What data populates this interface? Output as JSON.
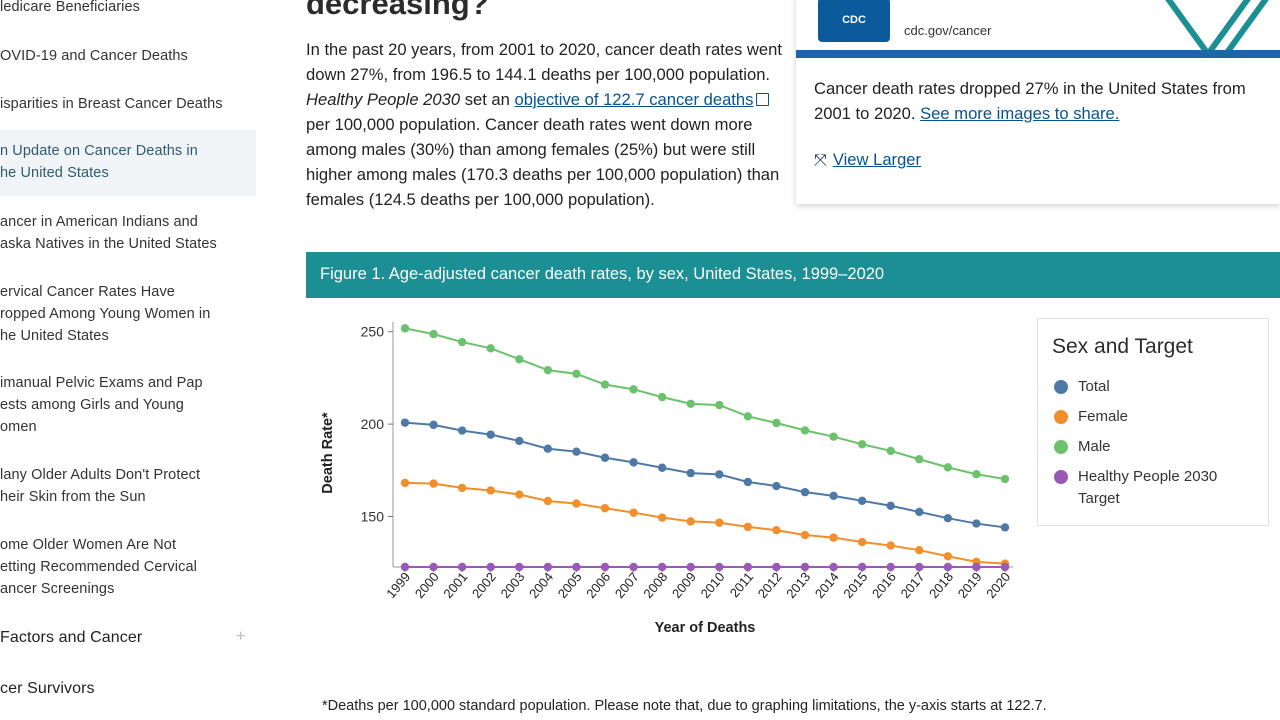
{
  "sidebar": {
    "items": [
      {
        "label": "ledicare Beneficiaries"
      },
      {
        "label": "OVID-19 and Cancer Deaths"
      },
      {
        "label": "isparities in Breast Cancer Deaths"
      },
      {
        "label": "n Update on Cancer Deaths in\nhe United States",
        "active": true
      },
      {
        "label": "ancer in American Indians and\naska Natives in the United States"
      },
      {
        "label": "ervical Cancer Rates Have\nropped Among Young Women in\nhe United States"
      },
      {
        "label": "imanual Pelvic Exams and Pap\nests among Girls and Young\nomen"
      },
      {
        "label": "lany Older Adults Don't Protect\nheir Skin from the Sun"
      },
      {
        "label": "ome Older Women Are Not\netting Recommended Cervical\nancer Screenings"
      }
    ],
    "sections": [
      {
        "label": "Factors and Cancer",
        "expand": "+"
      },
      {
        "label": "cer Survivors"
      }
    ]
  },
  "main": {
    "heading": "decreasing?",
    "paragraph": {
      "p1": "In the past 20 years, from 2001 to 2020, cancer death rates went down 27%, from 196.5 to 144.1 deaths per 100,000 population. ",
      "hp": "Healthy People 2030",
      "p2": " set an ",
      "link": "objective of 122.7 cancer deaths",
      "p3": " per 100,000 population. Cancer death rates went down more among males (30%) than among females (25%) but were still higher among males (170.3 deaths per 100,000 population) than females (124.5 deaths per 100,000 population)."
    }
  },
  "share_card": {
    "logo": "CDC",
    "url": "cdc.gov/cancer",
    "text": "Cancer death rates dropped 27% in the United States from 2001 to 2020. ",
    "link": "See more images to share.",
    "view_larger": "View Larger",
    "colors": {
      "banner": "#1b66a8",
      "logo": "#0a5a9c",
      "accent": "#1b8f93"
    }
  },
  "figure": {
    "title": "Figure 1. Age-adjusted cancer death rates, by sex, United States, 1999–2020",
    "header_color": "#1b8f93",
    "footnote": "*Deaths per 100,000 standard population. Please note that, due to graphing limitations, the y-axis starts at 122.7."
  },
  "chart_data": {
    "type": "line",
    "x": [
      "1999",
      "2000",
      "2001",
      "2002",
      "2003",
      "2004",
      "2005",
      "2006",
      "2007",
      "2008",
      "2009",
      "2010",
      "2011",
      "2012",
      "2013",
      "2014",
      "2015",
      "2016",
      "2017",
      "2018",
      "2019",
      "2020"
    ],
    "xlabel": "Year of Deaths",
    "ylabel": "Death Rate*",
    "ylim": [
      122.7,
      252
    ],
    "yticks": [
      150,
      200,
      250
    ],
    "legend_title": "Sex and Target",
    "legend_position": "right",
    "series": [
      {
        "name": "Total",
        "color": "#4e79a7",
        "values": [
          200.8,
          199.6,
          196.5,
          194.3,
          190.9,
          186.7,
          185.1,
          181.8,
          179.3,
          176.4,
          173.5,
          172.8,
          168.7,
          166.5,
          163.2,
          161.2,
          158.5,
          155.8,
          152.5,
          149.1,
          146.2,
          144.1
        ]
      },
      {
        "name": "Female",
        "color": "#f28e2b",
        "values": [
          168.2,
          167.8,
          165.5,
          164.1,
          161.9,
          158.4,
          157.0,
          154.5,
          152.1,
          149.4,
          147.4,
          146.7,
          144.4,
          142.6,
          140.0,
          138.6,
          136.2,
          134.3,
          131.8,
          128.5,
          125.5,
          124.5
        ]
      },
      {
        "name": "Male",
        "color": "#6cc26c",
        "values": [
          251.8,
          248.7,
          244.4,
          241.0,
          235.1,
          229.2,
          227.2,
          221.4,
          218.8,
          214.6,
          211.0,
          210.3,
          204.2,
          200.6,
          196.6,
          193.2,
          189.1,
          185.5,
          181.0,
          176.6,
          172.9,
          170.3
        ]
      },
      {
        "name": "Healthy People 2030 Target",
        "color": "#9b59b6",
        "values": [
          122.7,
          122.7,
          122.7,
          122.7,
          122.7,
          122.7,
          122.7,
          122.7,
          122.7,
          122.7,
          122.7,
          122.7,
          122.7,
          122.7,
          122.7,
          122.7,
          122.7,
          122.7,
          122.7,
          122.7,
          122.7,
          122.7
        ]
      }
    ]
  }
}
